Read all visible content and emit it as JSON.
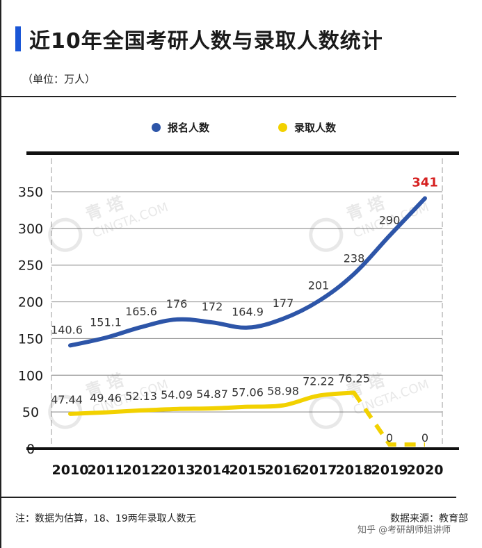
{
  "title": "近10年全国考研人数与录取人数统计",
  "unit": "（单位：万人）",
  "footnote": "注：数据为估算，18、19两年录取人数无",
  "source": "数据来源：教育部",
  "credit": "知乎 @考研胡师姐讲师",
  "watermark": {
    "brand": "青 塔",
    "site": "CINGTA.COM"
  },
  "colors": {
    "applicants": "#2d55a8",
    "admitted": "#f2d100",
    "highlight": "#d62020",
    "title_accent": "#1a56d6"
  },
  "chart_data": {
    "type": "line",
    "title": "近10年全国考研人数与录取人数统计",
    "unit": "（单位：万人）",
    "xlabel": "",
    "ylabel": "",
    "ylim": [
      0,
      350
    ],
    "yticks": [
      0,
      50,
      100,
      150,
      200,
      250,
      300,
      350
    ],
    "grid": true,
    "legend_position": "top",
    "x": [
      "2010",
      "2011",
      "2012",
      "2013",
      "2014",
      "2015",
      "2016",
      "2017",
      "2018",
      "2019",
      "2020"
    ],
    "series": [
      {
        "name": "报名人数",
        "values": [
          140.6,
          151.1,
          165.6,
          176,
          172,
          164.9,
          177,
          201,
          238,
          290,
          341
        ],
        "labels": [
          "140.6",
          "151.1",
          "165.6",
          "176",
          "172",
          "164.9",
          "177",
          "201",
          "238",
          "290",
          "341"
        ],
        "highlight_last": true
      },
      {
        "name": "录取人数",
        "values": [
          47.44,
          49.46,
          52.13,
          54.09,
          54.87,
          57.06,
          58.98,
          72.22,
          76.25,
          0,
          0
        ],
        "labels": [
          "47.44",
          "49.46",
          "52.13",
          "54.09",
          "54.87",
          "57.06",
          "58.98",
          "72.22",
          "76.25",
          "0",
          "0"
        ],
        "dashed_from_index": 8
      }
    ]
  }
}
